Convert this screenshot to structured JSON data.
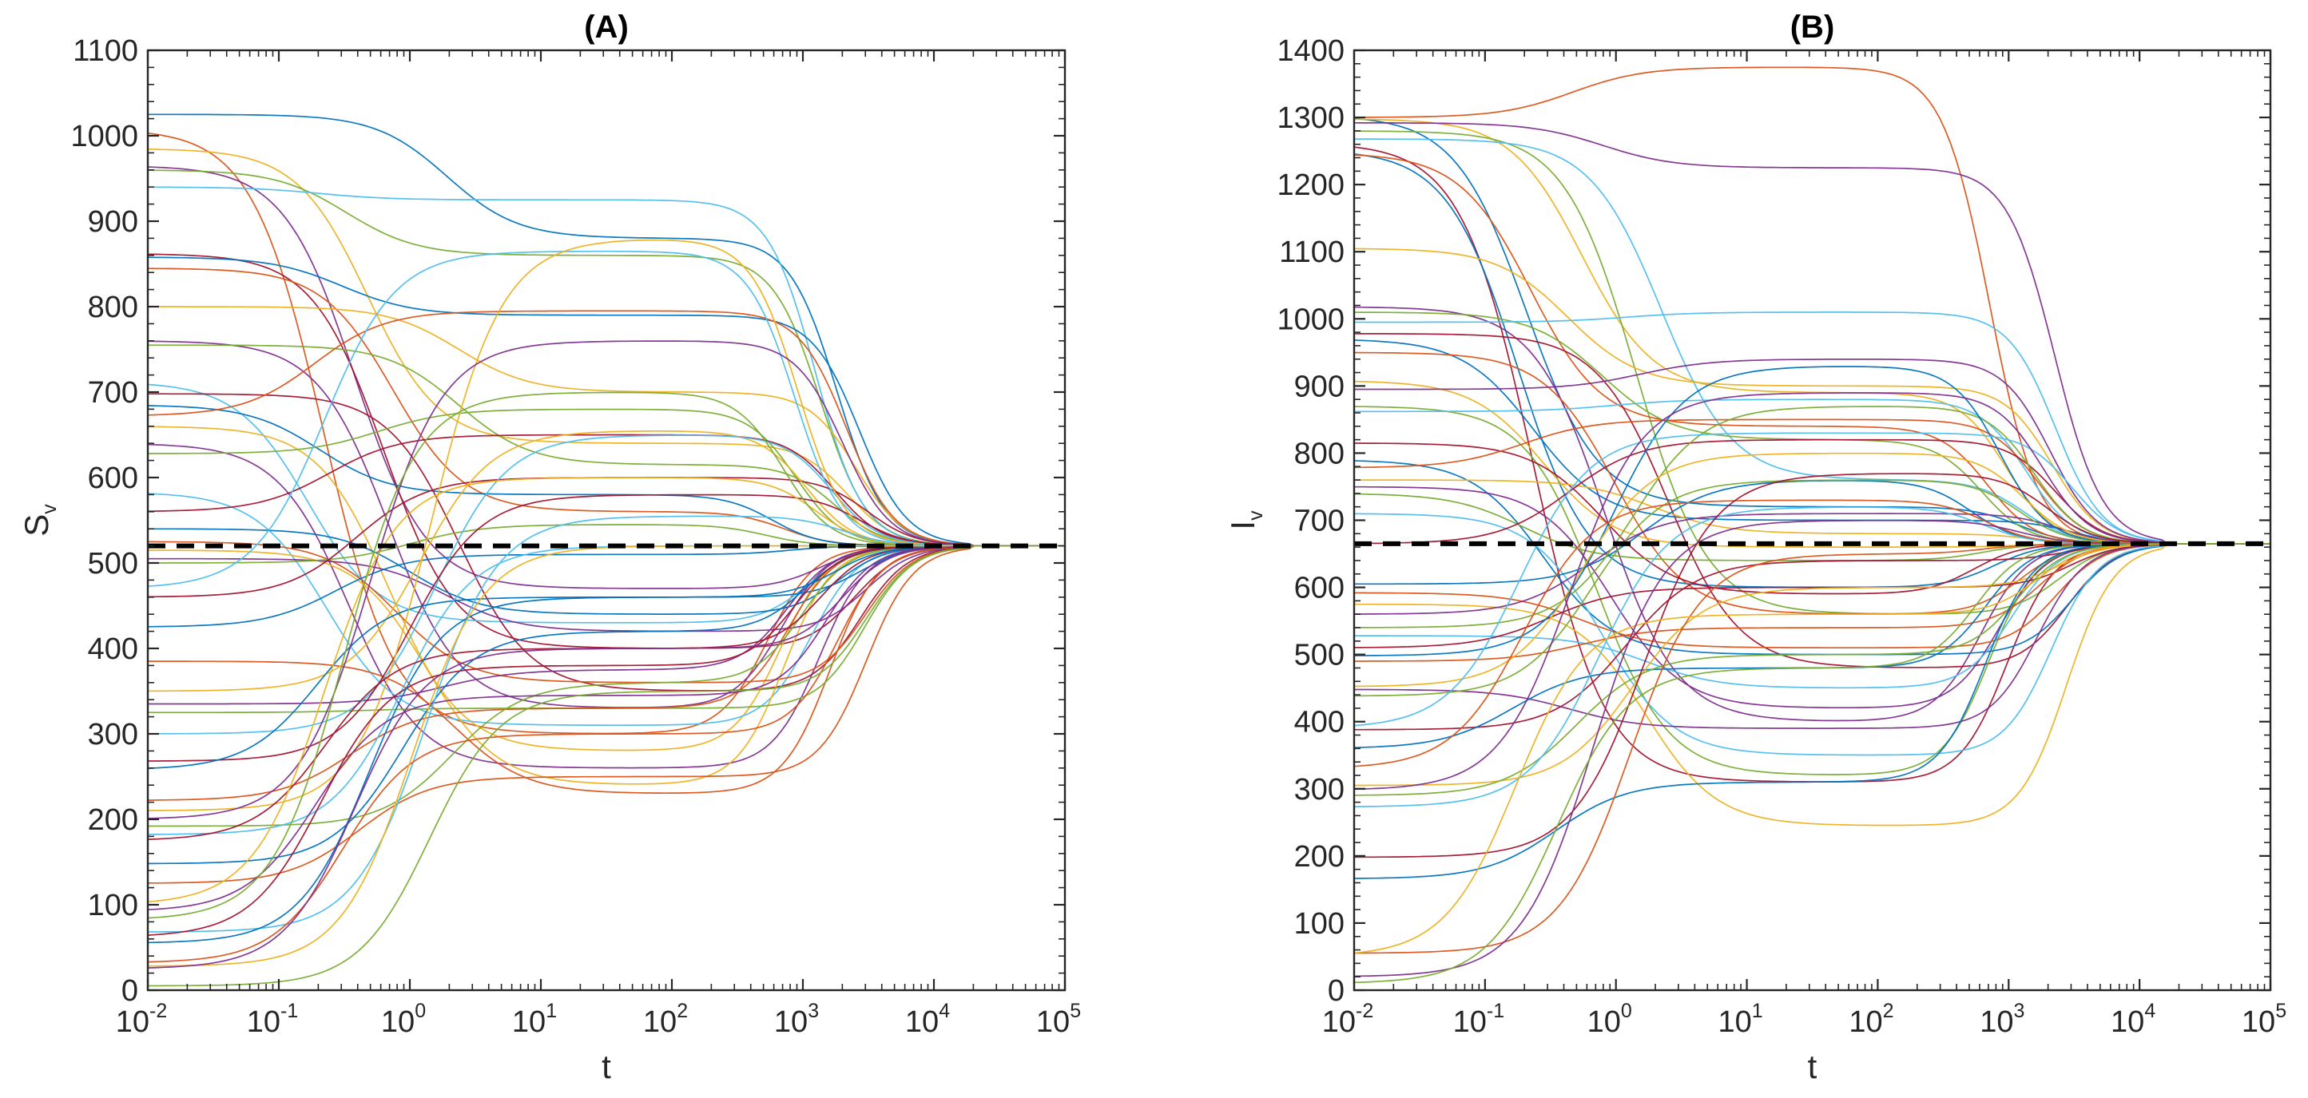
{
  "chart_data": [
    {
      "type": "line",
      "title": "(A)",
      "xlabel": "t",
      "ylabel": "S",
      "ylabel_subscript": "v",
      "xscale": "log",
      "xlim": [
        0.01,
        100000
      ],
      "ylim": [
        0,
        1100
      ],
      "ytick_values": [
        0,
        100,
        200,
        300,
        400,
        500,
        600,
        700,
        800,
        900,
        1000,
        1100
      ],
      "ytick_labels": [
        "0",
        "100",
        "200",
        "300",
        "400",
        "500",
        "600",
        "700",
        "800",
        "900",
        "1000",
        "1100"
      ],
      "xtick_exponents": [
        -2,
        -1,
        0,
        1,
        2,
        3,
        4,
        5
      ],
      "xtick_base": "10",
      "xtick_labels": [
        "-2",
        "-1",
        "0",
        "1",
        "2",
        "3",
        "4",
        "5"
      ],
      "equilibrium": 520,
      "equilibrium_style": "black dashed",
      "convergence_time": 20000,
      "overshoot_time": 25,
      "series_count": 54,
      "series_initial_values": [
        1025,
        1008,
        985,
        965,
        960,
        940,
        862,
        858,
        845,
        800,
        760,
        755,
        712,
        698,
        685,
        672,
        660,
        640,
        628,
        583,
        560,
        540,
        525,
        515,
        505,
        500,
        470,
        460,
        425,
        385,
        350,
        335,
        325,
        300,
        268,
        258,
        222,
        210,
        200,
        192,
        182,
        175,
        148,
        125,
        100,
        92,
        82,
        68,
        62,
        55,
        32,
        28,
        25,
        5
      ],
      "series_peak_values": [
        880,
        300,
        640,
        470,
        860,
        925,
        400,
        790,
        560,
        700,
        330,
        615,
        430,
        350,
        580,
        795,
        280,
        260,
        680,
        310,
        650,
        440,
        360,
        240,
        420,
        545,
        865,
        600,
        510,
        230,
        655,
        375,
        330,
        650,
        580,
        460,
        330,
        880,
        760,
        360,
        520,
        400,
        420,
        250,
        600,
        345,
        700,
        555,
        380,
        460,
        300,
        520,
        400,
        350
      ]
    },
    {
      "type": "line",
      "title": "(B)",
      "xlabel": "t",
      "ylabel": "I",
      "ylabel_subscript": "v",
      "xscale": "log",
      "xlim": [
        0.01,
        100000
      ],
      "ylim": [
        0,
        1400
      ],
      "ytick_values": [
        0,
        100,
        200,
        300,
        400,
        500,
        600,
        700,
        800,
        900,
        1000,
        1100,
        1200,
        1300,
        1400
      ],
      "ytick_labels": [
        "0",
        "100",
        "200",
        "300",
        "400",
        "500",
        "600",
        "700",
        "800",
        "900",
        "1000",
        "1100",
        "1200",
        "1300",
        "1400"
      ],
      "xtick_exponents": [
        -2,
        -1,
        0,
        1,
        2,
        3,
        4,
        5
      ],
      "xtick_base": "10",
      "xtick_labels": [
        "-2",
        "-1",
        "0",
        "1",
        "2",
        "3",
        "4",
        "5"
      ],
      "equilibrium": 665,
      "equilibrium_style": "black dashed",
      "convergence_time": 16000,
      "overshoot_time": 50,
      "series_count": 54,
      "series_initial_values": [
        1303,
        1300,
        1298,
        1292,
        1280,
        1268,
        1262,
        1252,
        1247,
        1105,
        1018,
        1010,
        995,
        978,
        970,
        950,
        908,
        895,
        870,
        862,
        815,
        790,
        778,
        760,
        750,
        740,
        710,
        665,
        605,
        592,
        575,
        560,
        540,
        528,
        510,
        498,
        490,
        452,
        448,
        438,
        390,
        388,
        360,
        330,
        305,
        298,
        290,
        273,
        198,
        166,
        55,
        50,
        20,
        10
      ],
      "series_peak_values": [
        720,
        1375,
        890,
        1225,
        560,
        760,
        310,
        600,
        840,
        900,
        400,
        820,
        1010,
        480,
        700,
        560,
        660,
        940,
        320,
        880,
        590,
        500,
        850,
        680,
        420,
        640,
        350,
        820,
        760,
        510,
        245,
        710,
        870,
        450,
        600,
        930,
        540,
        800,
        390,
        760,
        830,
        640,
        480,
        730,
        600,
        890,
        500,
        720,
        770,
        310,
        650,
        560,
        700,
        480
      ]
    }
  ]
}
